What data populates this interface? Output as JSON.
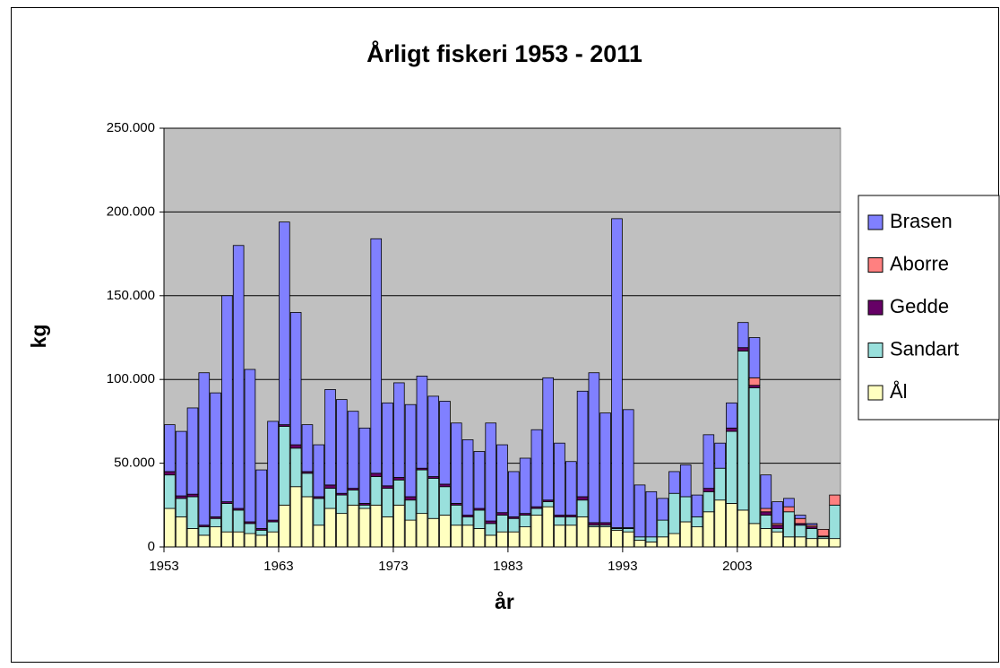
{
  "chart_data": {
    "type": "stacked_bar",
    "title": "Årligt fiskeri 1953 - 2011",
    "x_label": "år",
    "y_label": "kg",
    "categories": [
      1953,
      null,
      null,
      null,
      null,
      null,
      null,
      null,
      null,
      null,
      1963,
      null,
      null,
      null,
      null,
      null,
      null,
      null,
      null,
      null,
      1973,
      null,
      null,
      null,
      null,
      null,
      null,
      null,
      null,
      null,
      1983,
      null,
      null,
      null,
      null,
      null,
      null,
      null,
      null,
      null,
      1993,
      null,
      null,
      null,
      null,
      null,
      null,
      null,
      null,
      null,
      2003,
      null,
      null,
      null,
      null,
      null,
      null,
      null,
      null
    ],
    "ylim": [
      0,
      250000
    ],
    "yticks": [
      0,
      {
        "value": 50000,
        "label": "50.000"
      },
      {
        "value": 100000,
        "label": "100.000"
      },
      {
        "value": 150000,
        "label": "150.000"
      },
      {
        "value": 200000,
        "label": "200.000"
      },
      {
        "value": 250000,
        "label": "250.000"
      }
    ],
    "grid": true,
    "plot_background": "#c0c0c0",
    "legend": "right",
    "series": [
      {
        "name": "Ål",
        "color": "#ffffc0",
        "values": [
          23000,
          18000,
          11000,
          7000,
          12000,
          9000,
          9000,
          8000,
          7000,
          9000,
          25000,
          36000,
          30000,
          13000,
          23000,
          20000,
          25000,
          23000,
          25000,
          18000,
          25000,
          16000,
          20000,
          17000,
          19000,
          13000,
          13000,
          11000,
          7000,
          9000,
          9000,
          12000,
          19000,
          24000,
          13000,
          13000,
          18000,
          12000,
          12000,
          10000,
          9000,
          4000,
          3000,
          6000,
          8000,
          15000,
          12000,
          21000,
          28000,
          26000,
          22000,
          14000,
          11000,
          9000,
          6000,
          6000,
          5000,
          5000,
          5000
        ]
      },
      {
        "name": "Sandart",
        "color": "#99e0dc",
        "values": [
          20000,
          11000,
          19000,
          5000,
          5000,
          17000,
          13000,
          6000,
          3000,
          6000,
          47000,
          23000,
          14000,
          16000,
          12000,
          11000,
          9000,
          2000,
          17000,
          17000,
          15000,
          12000,
          26000,
          24000,
          17000,
          12000,
          5000,
          11000,
          7000,
          10000,
          8000,
          7000,
          4000,
          3000,
          5000,
          5000,
          10000,
          1000,
          1000,
          1000,
          2000,
          2000,
          3000,
          10000,
          24000,
          15000,
          6000,
          12000,
          19000,
          43000,
          95000,
          81000,
          8000,
          2000,
          15000,
          7000,
          6000,
          1000,
          20000
        ]
      },
      {
        "name": "Gedde",
        "color": "#660066",
        "values": [
          2000,
          1500,
          1500,
          1000,
          1000,
          1000,
          1000,
          1000,
          1000,
          1000,
          1000,
          2000,
          1000,
          1000,
          2000,
          1000,
          1000,
          1000,
          2000,
          1500,
          1500,
          2000,
          1000,
          1000,
          1500,
          1000,
          1000,
          1000,
          1500,
          1500,
          1000,
          1000,
          1000,
          1000,
          1000,
          1000,
          2000,
          1500,
          1500,
          500,
          500,
          0,
          0,
          0,
          0,
          0,
          0,
          2000,
          0,
          2000,
          2000,
          1500,
          2000,
          2000,
          0,
          1000,
          1000,
          500,
          0
        ]
      },
      {
        "name": "Aborre",
        "color": "#ff8080",
        "values": [
          0,
          0,
          0,
          0,
          0,
          0,
          0,
          0,
          0,
          0,
          0,
          0,
          0,
          0,
          0,
          0,
          0,
          0,
          0,
          0,
          0,
          0,
          0,
          0,
          0,
          0,
          0,
          0,
          0,
          0,
          0,
          0,
          0,
          0,
          0,
          0,
          0,
          0,
          0,
          0,
          0,
          0,
          0,
          0,
          0,
          0,
          0,
          0,
          0,
          0,
          0,
          4500,
          2000,
          1000,
          3000,
          3000,
          1000,
          4000,
          6000
        ]
      },
      {
        "name": "Brasen",
        "color": "#8080ff",
        "values": [
          28000,
          38500,
          51500,
          91000,
          74000,
          123000,
          157000,
          91000,
          35000,
          59000,
          121000,
          79000,
          28000,
          31000,
          57000,
          56000,
          46000,
          45000,
          140000,
          49500,
          56500,
          55000,
          55000,
          48000,
          49500,
          48000,
          45000,
          34000,
          58500,
          40500,
          27000,
          33000,
          46000,
          73000,
          43000,
          32000,
          63000,
          89500,
          65500,
          184500,
          70500,
          31000,
          27000,
          13000,
          13000,
          19000,
          13000,
          32000,
          15000,
          15000,
          15000,
          24000,
          20000,
          13000,
          5000,
          2000,
          1000,
          0,
          0
        ]
      }
    ]
  }
}
